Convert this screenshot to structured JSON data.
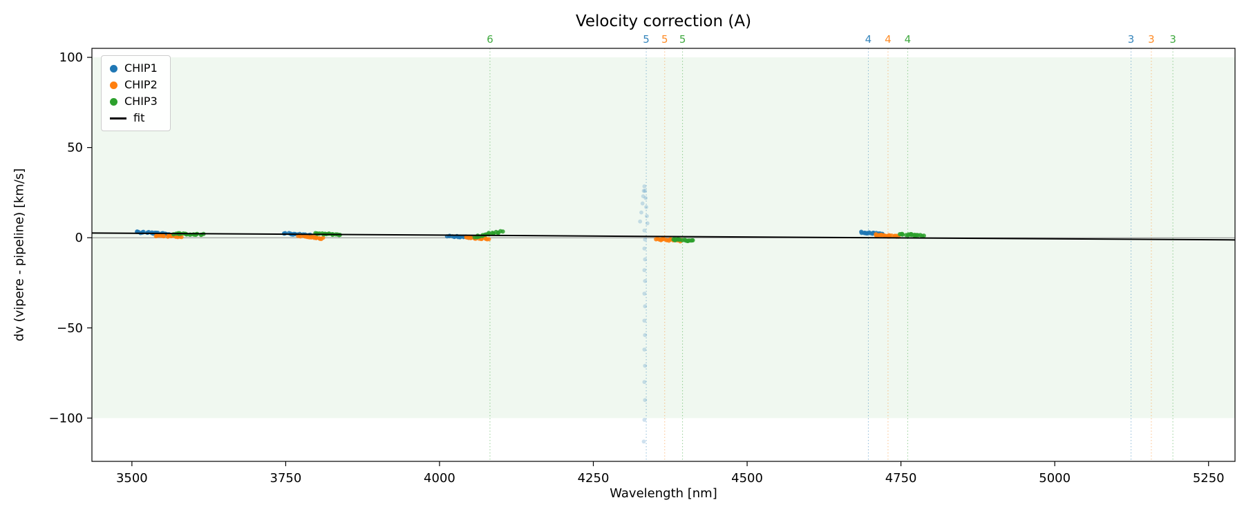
{
  "figure": {
    "title": "Velocity correction (A)",
    "xlabel": "Wavelength [nm]",
    "ylabel": "dv (vipere - pipeline) [km/s]"
  },
  "legend": {
    "items": [
      {
        "label": "CHIP1",
        "type": "dot",
        "color": "#1f77b4"
      },
      {
        "label": "CHIP2",
        "type": "dot",
        "color": "#ff7f0e"
      },
      {
        "label": "CHIP3",
        "type": "dot",
        "color": "#2ca02c"
      },
      {
        "label": "fit",
        "type": "line",
        "color": "#000000"
      }
    ]
  },
  "chart_data": {
    "type": "scatter",
    "title": "Velocity correction (A)",
    "xlabel": "Wavelength [nm]",
    "ylabel": "dv (vipere - pipeline) [km/s]",
    "xlim": [
      3435,
      5293
    ],
    "ylim": [
      -124,
      105
    ],
    "x_ticks": [
      3500,
      3750,
      4000,
      4250,
      4500,
      4750,
      5000,
      5250
    ],
    "y_ticks": [
      100,
      50,
      0,
      -50,
      -100
    ],
    "grid": false,
    "legend_position": "upper-left",
    "shaded_band": {
      "ymin": -100,
      "ymax": 100,
      "color": "rgba(44,160,44,0.07)"
    },
    "zero_line": {
      "y": 0,
      "color": "#8a8a8a"
    },
    "fit_line": {
      "label": "fit",
      "x": [
        3435,
        5293
      ],
      "y": [
        2.6,
        -1.2
      ],
      "color": "#000000"
    },
    "series": [
      {
        "name": "CHIP1",
        "color": "#1f77b4",
        "alpha": 0.85,
        "clusters": [
          {
            "x": [
              3508,
              3560
            ],
            "y": [
              3.2,
              2.0
            ],
            "n": 24,
            "seed": 1
          },
          {
            "x": [
              3748,
              3790
            ],
            "y": [
              2.4,
              1.3
            ],
            "n": 22,
            "seed": 2
          },
          {
            "x": [
              4014,
              4052
            ],
            "y": [
              1.0,
              0.2
            ],
            "n": 20,
            "seed": 3
          },
          {
            "x": [
              4686,
              4722
            ],
            "y": [
              3.0,
              1.9
            ],
            "n": 22,
            "seed": 4
          }
        ]
      },
      {
        "name": "CHIP2",
        "color": "#ff7f0e",
        "alpha": 0.85,
        "clusters": [
          {
            "x": [
              3538,
              3580
            ],
            "y": [
              1.2,
              0.6
            ],
            "n": 20,
            "seed": 5
          },
          {
            "x": [
              3772,
              3810
            ],
            "y": [
              1.1,
              -0.4
            ],
            "n": 20,
            "seed": 6
          },
          {
            "x": [
              4042,
              4078
            ],
            "y": [
              0.2,
              -0.6
            ],
            "n": 18,
            "seed": 7
          },
          {
            "x": [
              4352,
              4392
            ],
            "y": [
              -0.8,
              -1.6
            ],
            "n": 20,
            "seed": 8
          },
          {
            "x": [
              4708,
              4746
            ],
            "y": [
              1.6,
              0.8
            ],
            "n": 20,
            "seed": 9
          }
        ]
      },
      {
        "name": "CHIP3",
        "color": "#2ca02c",
        "alpha": 0.85,
        "clusters": [
          {
            "x": [
              3568,
              3616
            ],
            "y": [
              2.2,
              1.7
            ],
            "n": 20,
            "seed": 10
          },
          {
            "x": [
              3796,
              3836
            ],
            "y": [
              2.4,
              1.8
            ],
            "n": 20,
            "seed": 11
          },
          {
            "x": [
              4058,
              4100
            ],
            "y": [
              0.6,
              3.4
            ],
            "n": 20,
            "seed": 12,
            "jy": 1.2
          },
          {
            "x": [
              4378,
              4414
            ],
            "y": [
              -0.9,
              -1.7
            ],
            "n": 18,
            "seed": 13
          },
          {
            "x": [
              4748,
              4786
            ],
            "y": [
              2.0,
              1.2
            ],
            "n": 18,
            "seed": 14
          }
        ]
      }
    ],
    "outlier_trail": {
      "series": "CHIP1",
      "color": "#1f77b4",
      "alpha": 0.22,
      "points": [
        [
          4326,
          9
        ],
        [
          4328,
          14
        ],
        [
          4330,
          19
        ],
        [
          4331,
          23
        ],
        [
          4332,
          26
        ],
        [
          4333,
          28.5
        ],
        [
          4334,
          26
        ],
        [
          4335,
          22
        ],
        [
          4336,
          17
        ],
        [
          4337,
          12
        ],
        [
          4338,
          8
        ],
        [
          4333,
          4
        ],
        [
          4334,
          -1
        ],
        [
          4333,
          -6
        ],
        [
          4334,
          -12
        ],
        [
          4333,
          -18
        ],
        [
          4334,
          -24
        ],
        [
          4333,
          -31
        ],
        [
          4334,
          -38
        ],
        [
          4333,
          -46
        ],
        [
          4334,
          -54
        ],
        [
          4333,
          -62
        ],
        [
          4334,
          -71
        ],
        [
          4333,
          -80
        ],
        [
          4334,
          -90
        ],
        [
          4333,
          -101
        ],
        [
          4332,
          -113
        ]
      ]
    },
    "order_markers": [
      {
        "label": "6",
        "x": 4082,
        "color": "#2ca02c"
      },
      {
        "label": "5",
        "x": 4336,
        "color": "#1f77b4"
      },
      {
        "label": "5",
        "x": 4366,
        "color": "#ff7f0e"
      },
      {
        "label": "5",
        "x": 4395,
        "color": "#2ca02c"
      },
      {
        "label": "4",
        "x": 4697,
        "color": "#1f77b4"
      },
      {
        "label": "4",
        "x": 4729,
        "color": "#ff7f0e"
      },
      {
        "label": "4",
        "x": 4761,
        "color": "#2ca02c"
      },
      {
        "label": "3",
        "x": 5124,
        "color": "#1f77b4"
      },
      {
        "label": "3",
        "x": 5157,
        "color": "#ff7f0e"
      },
      {
        "label": "3",
        "x": 5192,
        "color": "#2ca02c"
      }
    ]
  }
}
